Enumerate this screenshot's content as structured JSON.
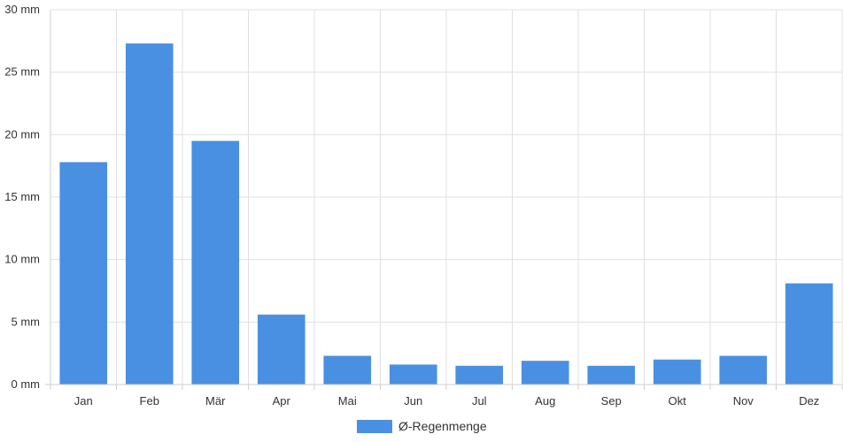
{
  "colors": {
    "bar": "#4a90e2",
    "grid": "#e0e0e0",
    "axis": "#cfcfcf",
    "text": "#333333"
  },
  "chart_data": {
    "type": "bar",
    "categories": [
      "Jan",
      "Feb",
      "Mär",
      "Apr",
      "Mai",
      "Jun",
      "Jul",
      "Aug",
      "Sep",
      "Okt",
      "Nov",
      "Dez"
    ],
    "series": [
      {
        "name": "Ø-Regenmenge",
        "values": [
          17.8,
          27.3,
          19.5,
          5.6,
          2.3,
          1.6,
          1.5,
          1.9,
          1.5,
          2.0,
          2.3,
          8.1
        ]
      }
    ],
    "y_ticks": [
      "0 mm",
      "5 mm",
      "10 mm",
      "15 mm",
      "20 mm",
      "25 mm",
      "30 mm"
    ],
    "ylim": [
      0,
      30
    ],
    "y_tick_step": 5,
    "grid": true,
    "legend_position": "bottom"
  }
}
